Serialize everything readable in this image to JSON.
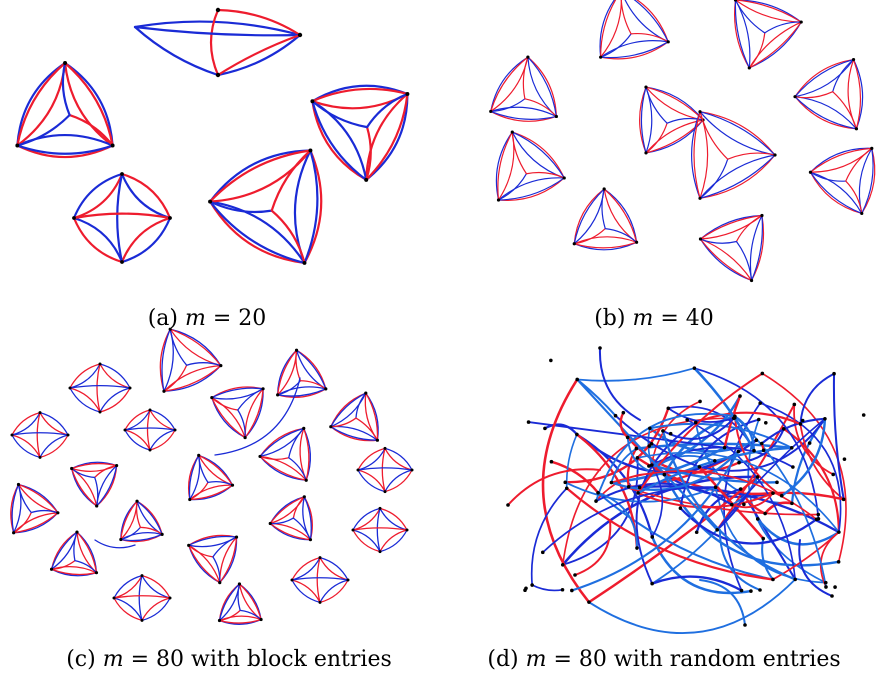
{
  "colors": {
    "red": "#ee1c2e",
    "blue": "#1a2bd6",
    "lightblue": "#1f6fe0",
    "node": "#000000"
  },
  "panels": [
    {
      "id": "a",
      "caption_prefix": "(a) ",
      "caption_var": "m",
      "caption_rest": " = 20"
    },
    {
      "id": "b",
      "caption_prefix": "(b) ",
      "caption_var": "m",
      "caption_rest": " = 40"
    },
    {
      "id": "c",
      "caption_prefix": "(c) ",
      "caption_var": "m",
      "caption_rest": " = 80 with block entries"
    },
    {
      "id": "d",
      "caption_prefix": "(d) ",
      "caption_var": "m",
      "caption_rest": " = 80 with random entries"
    }
  ]
}
